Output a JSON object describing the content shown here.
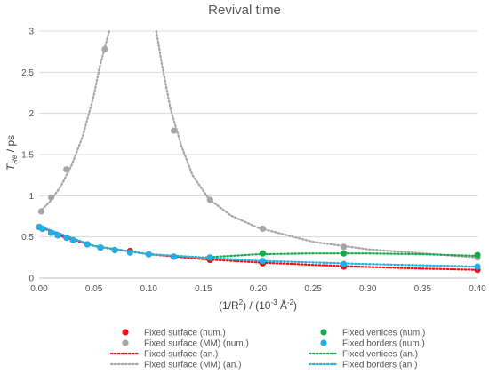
{
  "chart_data": {
    "type": "scatter",
    "title": "Revival time",
    "ylabel": "T_Re / ps",
    "ylabel_main": "T",
    "ylabel_sub": "Re",
    "ylabel_rest": " / ps",
    "xlabel_pre": "(1/R",
    "xlabel_sup1": "2",
    "xlabel_mid": ") / (10",
    "xlabel_sup2": "-3",
    "xlabel_post": " Å",
    "xlabel_sup3": "-2",
    "xlabel_end": ")",
    "xlim": [
      0,
      0.4
    ],
    "ylim": [
      0,
      3
    ],
    "x_ticks": [
      "0.00",
      "0.05",
      "0.10",
      "0.15",
      "0.20",
      "0.25",
      "0.30",
      "0.35",
      "0.40"
    ],
    "y_ticks": [
      "0",
      "0.5",
      "1",
      "1.5",
      "2",
      "2.5",
      "3"
    ],
    "grid": "horizontal",
    "legend_position": "bottom",
    "series": [
      {
        "name": "Fixed surface (num.)",
        "kind": "points",
        "color": "#e8141b",
        "points": [
          [
            0.0,
            0.62
          ],
          [
            0.003,
            0.6
          ],
          [
            0.011,
            0.55
          ],
          [
            0.017,
            0.52
          ],
          [
            0.025,
            0.49
          ],
          [
            0.031,
            0.46
          ],
          [
            0.044,
            0.41
          ],
          [
            0.056,
            0.37
          ],
          [
            0.069,
            0.34
          ],
          [
            0.083,
            0.33
          ],
          [
            0.1,
            0.29
          ],
          [
            0.123,
            0.26
          ],
          [
            0.156,
            0.22
          ],
          [
            0.204,
            0.18
          ],
          [
            0.278,
            0.14
          ],
          [
            0.4,
            0.1
          ]
        ]
      },
      {
        "name": "Fixed surface (MM) (num.)",
        "kind": "points",
        "color": "#a6a6a6",
        "points": [
          [
            0.002,
            0.81
          ],
          [
            0.011,
            0.98
          ],
          [
            0.025,
            1.32
          ],
          [
            0.06,
            2.78
          ],
          [
            0.123,
            1.79
          ],
          [
            0.156,
            0.95
          ],
          [
            0.204,
            0.6
          ],
          [
            0.278,
            0.38
          ],
          [
            0.4,
            0.25
          ]
        ]
      },
      {
        "name": "Fixed vertices (num.)",
        "kind": "points",
        "color": "#19a84a",
        "points": [
          [
            0.156,
            0.25
          ],
          [
            0.204,
            0.3
          ],
          [
            0.278,
            0.3
          ],
          [
            0.4,
            0.28
          ]
        ]
      },
      {
        "name": "Fixed borders (num.)",
        "kind": "points",
        "color": "#1fb0e8",
        "points": [
          [
            0.0,
            0.62
          ],
          [
            0.003,
            0.6
          ],
          [
            0.011,
            0.55
          ],
          [
            0.017,
            0.52
          ],
          [
            0.025,
            0.49
          ],
          [
            0.031,
            0.46
          ],
          [
            0.044,
            0.41
          ],
          [
            0.056,
            0.37
          ],
          [
            0.069,
            0.34
          ],
          [
            0.083,
            0.31
          ],
          [
            0.1,
            0.29
          ],
          [
            0.123,
            0.26
          ],
          [
            0.156,
            0.25
          ],
          [
            0.204,
            0.21
          ],
          [
            0.278,
            0.17
          ],
          [
            0.4,
            0.14
          ]
        ]
      },
      {
        "name": "Fixed surface (an.)",
        "kind": "line",
        "color": "#e8141b",
        "points": [
          [
            0.0,
            0.63
          ],
          [
            0.02,
            0.51
          ],
          [
            0.05,
            0.39
          ],
          [
            0.1,
            0.29
          ],
          [
            0.15,
            0.23
          ],
          [
            0.2,
            0.19
          ],
          [
            0.25,
            0.16
          ],
          [
            0.3,
            0.135
          ],
          [
            0.35,
            0.115
          ],
          [
            0.4,
            0.1
          ]
        ]
      },
      {
        "name": "Fixed surface (MM) (an.)",
        "kind": "line",
        "color": "#a6a6a6",
        "points": [
          [
            0.0,
            0.8
          ],
          [
            0.01,
            0.93
          ],
          [
            0.02,
            1.12
          ],
          [
            0.03,
            1.38
          ],
          [
            0.04,
            1.73
          ],
          [
            0.05,
            2.22
          ],
          [
            0.055,
            2.55
          ],
          [
            0.06,
            2.8
          ],
          [
            0.064,
            3.0
          ]
        ]
      },
      {
        "name": "Fixed surface (MM) (an.) right",
        "kind": "line",
        "color": "#a6a6a6",
        "points": [
          [
            0.107,
            3.0
          ],
          [
            0.112,
            2.6
          ],
          [
            0.12,
            2.05
          ],
          [
            0.13,
            1.6
          ],
          [
            0.14,
            1.25
          ],
          [
            0.155,
            0.96
          ],
          [
            0.175,
            0.76
          ],
          [
            0.2,
            0.61
          ],
          [
            0.25,
            0.44
          ],
          [
            0.3,
            0.35
          ],
          [
            0.35,
            0.3
          ],
          [
            0.4,
            0.25
          ]
        ]
      },
      {
        "name": "Fixed vertices (an.)",
        "kind": "line",
        "color": "#19a84a",
        "points": [
          [
            0.0,
            0.63
          ],
          [
            0.05,
            0.39
          ],
          [
            0.1,
            0.29
          ],
          [
            0.15,
            0.25
          ],
          [
            0.2,
            0.29
          ],
          [
            0.25,
            0.3
          ],
          [
            0.3,
            0.3
          ],
          [
            0.35,
            0.29
          ],
          [
            0.4,
            0.27
          ]
        ]
      },
      {
        "name": "Fixed borders (an.)",
        "kind": "line",
        "color": "#1fb0e8",
        "points": [
          [
            0.0,
            0.63
          ],
          [
            0.05,
            0.39
          ],
          [
            0.1,
            0.29
          ],
          [
            0.15,
            0.25
          ],
          [
            0.2,
            0.21
          ],
          [
            0.25,
            0.19
          ],
          [
            0.3,
            0.17
          ],
          [
            0.35,
            0.155
          ],
          [
            0.4,
            0.14
          ]
        ]
      }
    ],
    "legend": [
      {
        "label": "Fixed surface (num.)",
        "color": "#e8141b",
        "kind": "dot"
      },
      {
        "label": "Fixed vertices (num.)",
        "color": "#19a84a",
        "kind": "dot"
      },
      {
        "label": "Fixed surface (MM) (num.)",
        "color": "#a6a6a6",
        "kind": "dot"
      },
      {
        "label": "Fixed borders (num.)",
        "color": "#1fb0e8",
        "kind": "dot"
      },
      {
        "label": "Fixed surface (an.)",
        "color": "#e8141b",
        "kind": "line"
      },
      {
        "label": "Fixed vertices (an.)",
        "color": "#19a84a",
        "kind": "line"
      },
      {
        "label": "Fixed surface (MM) (an.)",
        "color": "#a6a6a6",
        "kind": "line"
      },
      {
        "label": "Fixed borders (an.)",
        "color": "#1fb0e8",
        "kind": "line"
      }
    ]
  }
}
